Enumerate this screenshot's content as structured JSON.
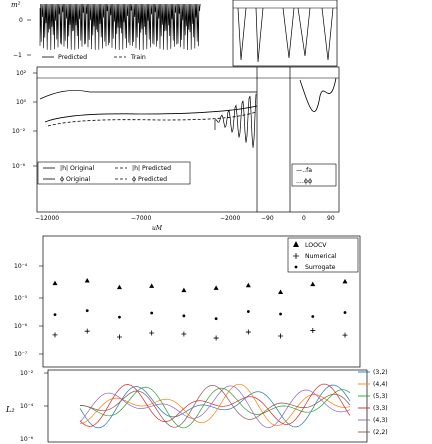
{
  "chart_data": [
    {
      "type": "line",
      "panel": "top",
      "ylabel": "m²",
      "yticks": [
        "0",
        "−1"
      ],
      "series": [
        {
          "name": "Predicted",
          "style": "solid",
          "color": "#000000"
        },
        {
          "name": "Train",
          "style": "dashed",
          "color": "#000000"
        }
      ],
      "legend": "top-left"
    },
    {
      "type": "line",
      "panel": "magnitude-phase",
      "yscale": "log",
      "yticks": [
        "10²",
        "10⁰",
        "10⁻²",
        "10⁻⁶"
      ],
      "xticks": [
        "−12000",
        "−7000",
        "−2000",
        "−90",
        "0",
        "90"
      ],
      "xlabel": "uM",
      "series": [
        {
          "name": "|h| Original",
          "style": "solid"
        },
        {
          "name": "|h| Predicted",
          "style": "dashed"
        },
        {
          "name": "ϕ Original",
          "style": "solid"
        },
        {
          "name": "ϕ Predicted",
          "style": "dashed"
        }
      ],
      "inset_legend": [
        {
          "name": "—..fa",
          "style": "dashed"
        },
        {
          "name": "....ϕϕ",
          "style": "dotted"
        }
      ],
      "legend": "lower-left"
    },
    {
      "type": "scatter",
      "panel": "loocv",
      "yscale": "log",
      "yticks": [
        "10⁻⁴",
        "10⁻⁵",
        "10⁻⁶",
        "10⁻⁷"
      ],
      "series": [
        {
          "name": "LOOCV",
          "marker": "triangle",
          "y": [
            2.6e-05,
            3.2e-05,
            1.9e-05,
            2.1e-05,
            1.5e-05,
            1.8e-05,
            2.2e-05,
            1.3e-05,
            2.4e-05,
            3e-05
          ]
        },
        {
          "name": "Numerical",
          "marker": "plus",
          "y": [
            4.5e-07,
            6e-07,
            3.8e-07,
            5.2e-07,
            4.8e-07,
            3.5e-07,
            5.6e-07,
            4.1e-07,
            6.3e-07,
            4.4e-07
          ]
        },
        {
          "name": "Surrogate",
          "marker": "dot",
          "y": [
            2.2e-06,
            3e-06,
            1.8e-06,
            2.5e-06,
            2e-06,
            1.6e-06,
            2.8e-06,
            2.3e-06,
            1.9e-06,
            2.6e-06
          ]
        }
      ],
      "legend": "top-right"
    },
    {
      "type": "line",
      "panel": "bottom",
      "yscale": "log",
      "ylabel": "L₂",
      "yticks": [
        "10⁻²",
        "10⁻⁴",
        "10⁻⁶"
      ],
      "series": [
        {
          "name": "(3,2)",
          "color": "#1f77b4"
        },
        {
          "name": "(4,4)",
          "color": "#ff7f0e"
        },
        {
          "name": "(5,3)",
          "color": "#2ca02c"
        },
        {
          "name": "(3,3)",
          "color": "#d62728"
        },
        {
          "name": "(4,3)",
          "color": "#9467bd"
        },
        {
          "name": "(2,2)",
          "color": "#8c564b"
        }
      ],
      "legend": "right-outside"
    }
  ]
}
